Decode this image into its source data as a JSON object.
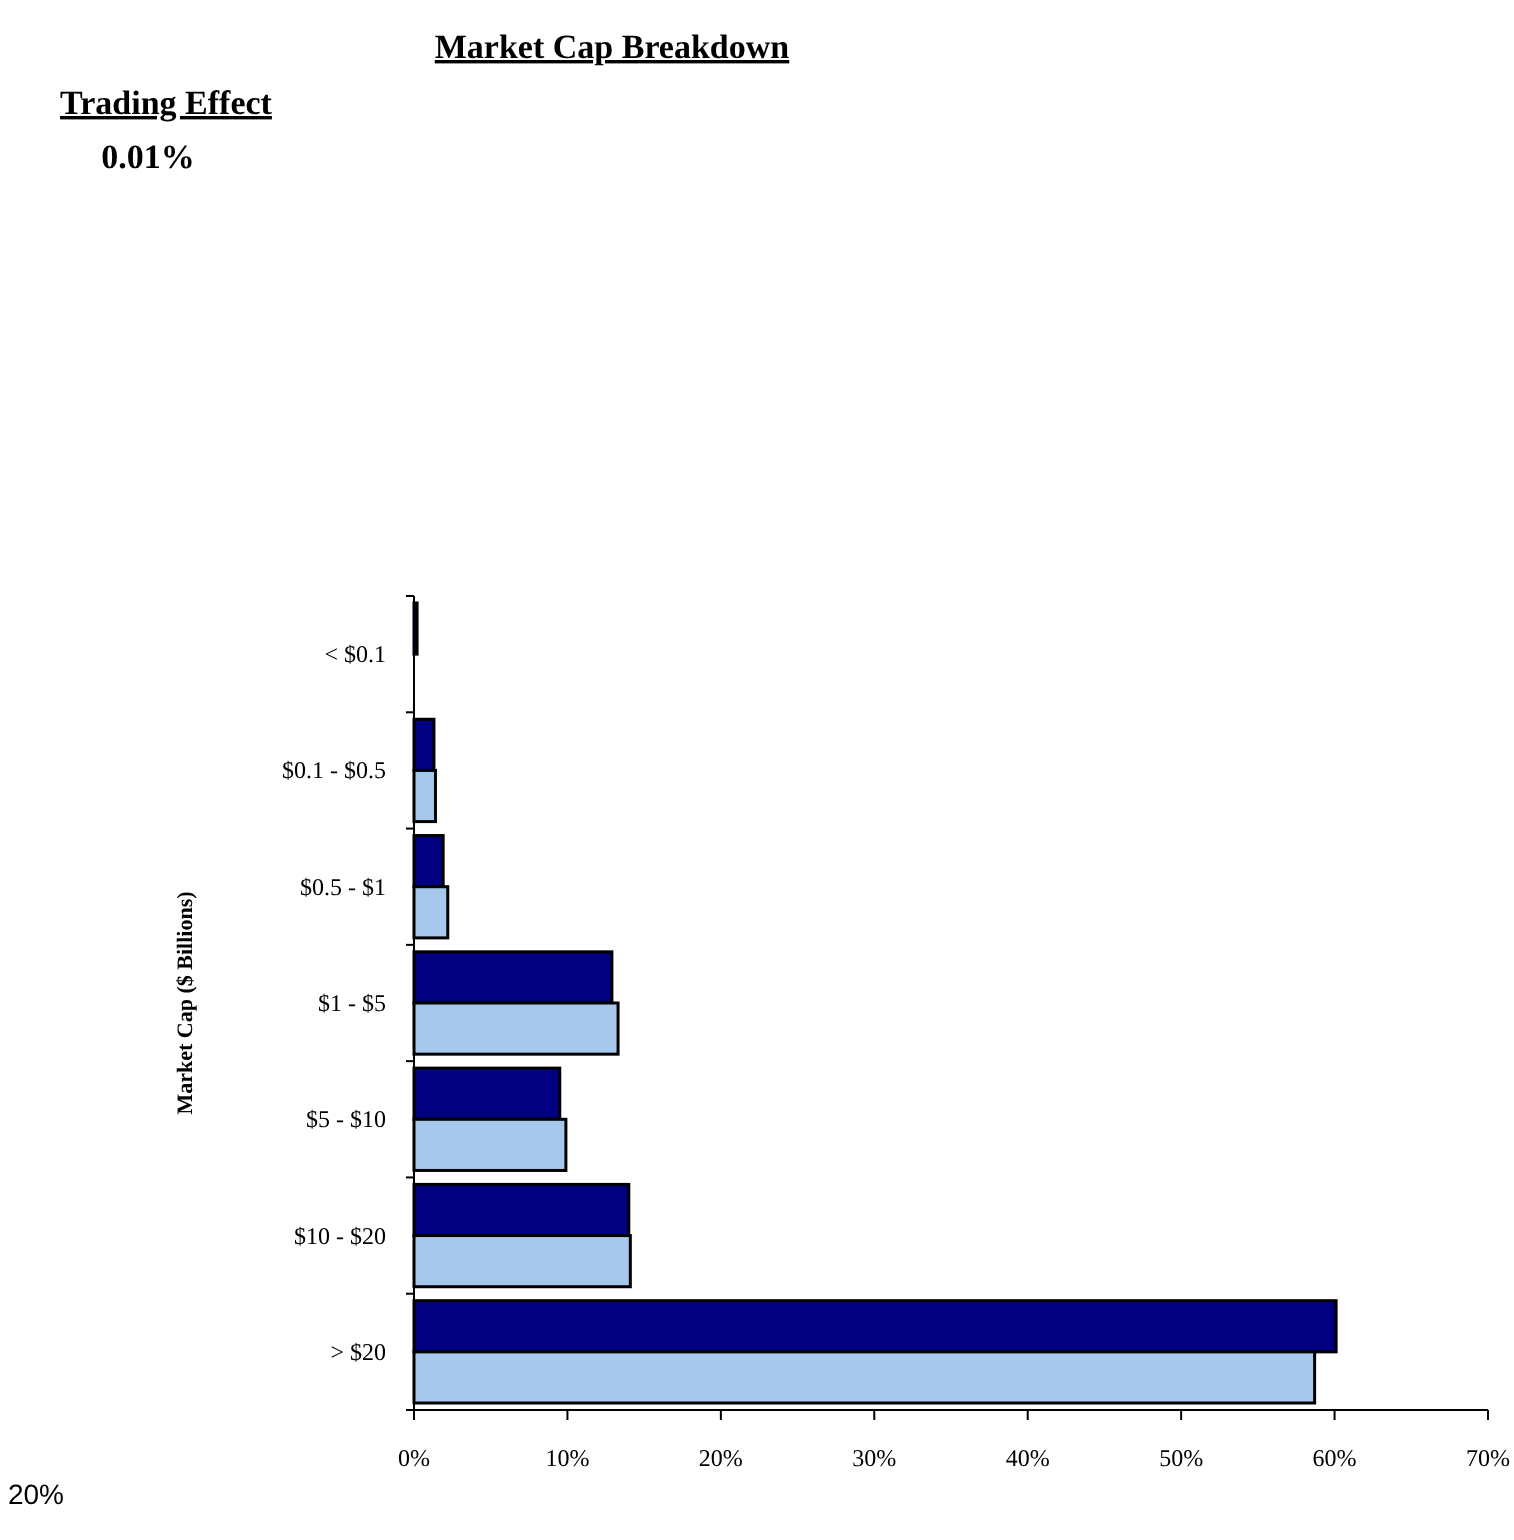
{
  "chart_data": {
    "type": "bar",
    "orientation": "horizontal",
    "title": "Market Cap Breakdown",
    "ylabel": "Market Cap ($ Billions)",
    "categories": [
      "< $0.1",
      "$0.1 - $0.5",
      "$0.5 - $1",
      "$1 - $5",
      "$5 - $10",
      "$10 - $20",
      "> $20"
    ],
    "series": [
      {
        "color": "#000080",
        "values": [
          0.2,
          1.3,
          1.9,
          12.9,
          9.5,
          14.0,
          60.1
        ]
      },
      {
        "color": "#a6c8ec",
        "values": [
          null,
          1.4,
          2.2,
          13.3,
          9.9,
          14.1,
          58.7
        ]
      }
    ],
    "xlim": [
      0,
      70
    ],
    "xticks": [
      {
        "value": 0,
        "label": "0%"
      },
      {
        "value": 10,
        "label": "10%"
      },
      {
        "value": 20,
        "label": "20%"
      },
      {
        "value": 30,
        "label": "30%"
      },
      {
        "value": 40,
        "label": "40%"
      },
      {
        "value": 50,
        "label": "50%"
      },
      {
        "value": 60,
        "label": "60%"
      },
      {
        "value": 70,
        "label": "70%"
      }
    ],
    "grid": false,
    "annotations": [
      "Trading Effect",
      "0.01%",
      "20%"
    ]
  }
}
